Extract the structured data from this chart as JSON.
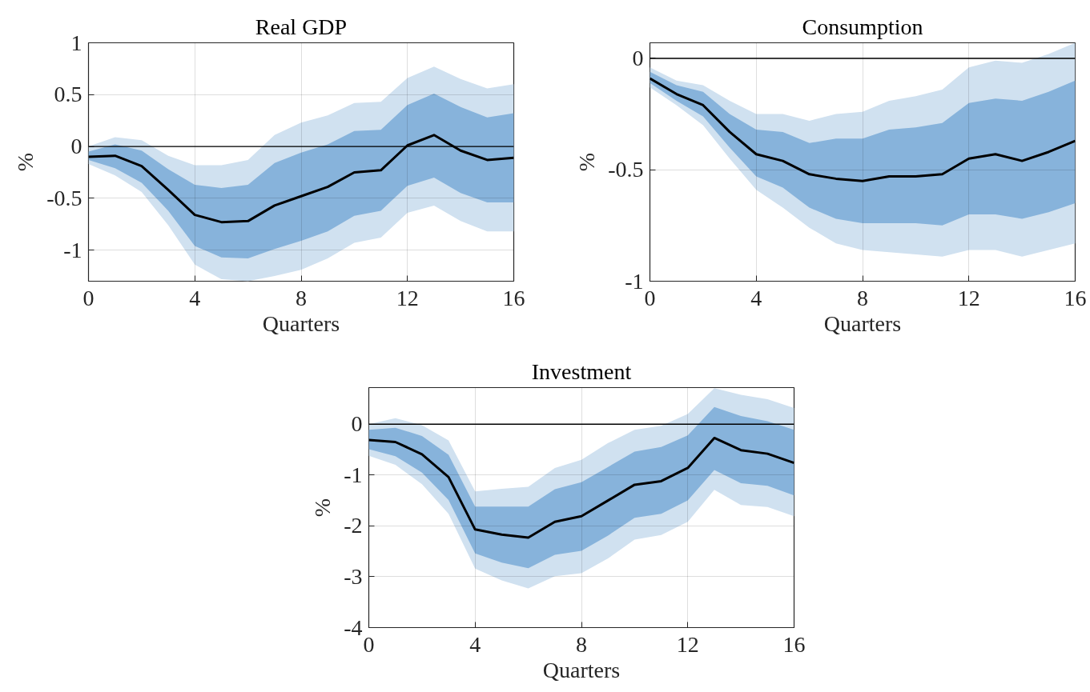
{
  "chart_data": [
    {
      "type": "line",
      "title": "Real GDP",
      "xlabel": "Quarters",
      "ylabel": "%",
      "x": [
        0,
        1,
        2,
        3,
        4,
        5,
        6,
        7,
        8,
        9,
        10,
        11,
        12,
        13,
        14,
        15,
        16
      ],
      "xlim": [
        0,
        16
      ],
      "xticks": [
        0,
        4,
        8,
        12,
        16
      ],
      "ylim": [
        -1.3,
        1
      ],
      "yticks": [
        -1,
        -0.5,
        0,
        0.5,
        1
      ],
      "grid": true,
      "line_style": "solid",
      "marker": "none",
      "ref_lines": [
        {
          "axis": "y",
          "value": 0,
          "color": "#000000"
        }
      ],
      "series": [
        {
          "color": "#d0e1f0",
          "values": [
            null,
            null,
            null,
            null,
            null,
            null,
            null,
            null,
            null,
            null,
            null,
            null,
            null,
            null,
            null,
            null,
            null
          ],
          "lower": [
            -0.17,
            -0.28,
            -0.44,
            -0.76,
            -1.14,
            -1.28,
            -1.3,
            -1.25,
            -1.19,
            -1.08,
            -0.93,
            -0.88,
            -0.64,
            -0.57,
            -0.72,
            -0.82,
            -0.82
          ],
          "upper": [
            0.0,
            0.09,
            0.06,
            -0.09,
            -0.18,
            -0.18,
            -0.13,
            0.11,
            0.23,
            0.3,
            0.42,
            0.43,
            0.66,
            0.77,
            0.65,
            0.56,
            0.6
          ]
        },
        {
          "color": "#87b3db",
          "values": [
            null,
            null,
            null,
            null,
            null,
            null,
            null,
            null,
            null,
            null,
            null,
            null,
            null,
            null,
            null,
            null,
            null
          ],
          "lower": [
            -0.13,
            -0.21,
            -0.35,
            -0.62,
            -0.96,
            -1.07,
            -1.08,
            -0.99,
            -0.91,
            -0.82,
            -0.67,
            -0.62,
            -0.38,
            -0.3,
            -0.45,
            -0.54,
            -0.54
          ],
          "upper": [
            -0.05,
            0.02,
            -0.04,
            -0.22,
            -0.37,
            -0.4,
            -0.37,
            -0.16,
            -0.06,
            0.02,
            0.15,
            0.16,
            0.4,
            0.51,
            0.38,
            0.28,
            0.32
          ]
        },
        {
          "color": "#000000",
          "values": [
            -0.1,
            -0.09,
            -0.19,
            -0.42,
            -0.66,
            -0.73,
            -0.72,
            -0.57,
            -0.48,
            -0.39,
            -0.25,
            -0.23,
            0.01,
            0.11,
            -0.04,
            -0.13,
            -0.11
          ]
        }
      ]
    },
    {
      "type": "line",
      "title": "Consumption",
      "xlabel": "Quarters",
      "ylabel": "%",
      "x": [
        0,
        1,
        2,
        3,
        4,
        5,
        6,
        7,
        8,
        9,
        10,
        11,
        12,
        13,
        14,
        15,
        16
      ],
      "xlim": [
        0,
        16
      ],
      "xticks": [
        0,
        4,
        8,
        12,
        16
      ],
      "ylim": [
        -1,
        0.07
      ],
      "yticks": [
        -1,
        -0.5,
        0
      ],
      "grid": true,
      "line_style": "solid",
      "marker": "none",
      "ref_lines": [
        {
          "axis": "y",
          "value": 0,
          "color": "#000000"
        }
      ],
      "series": [
        {
          "color": "#d0e1f0",
          "values": [
            null,
            null,
            null,
            null,
            null,
            null,
            null,
            null,
            null,
            null,
            null,
            null,
            null,
            null,
            null,
            null,
            null
          ],
          "lower": [
            -0.13,
            -0.21,
            -0.3,
            -0.45,
            -0.59,
            -0.67,
            -0.76,
            -0.83,
            -0.86,
            -0.87,
            -0.88,
            -0.89,
            -0.86,
            -0.86,
            -0.89,
            -0.86,
            -0.83
          ],
          "upper": [
            -0.04,
            -0.1,
            -0.12,
            -0.19,
            -0.25,
            -0.25,
            -0.28,
            -0.25,
            -0.24,
            -0.19,
            -0.17,
            -0.14,
            -0.04,
            -0.01,
            -0.02,
            0.02,
            0.07
          ]
        },
        {
          "color": "#87b3db",
          "values": [
            null,
            null,
            null,
            null,
            null,
            null,
            null,
            null,
            null,
            null,
            null,
            null,
            null,
            null,
            null,
            null,
            null
          ],
          "lower": [
            -0.11,
            -0.19,
            -0.26,
            -0.4,
            -0.53,
            -0.58,
            -0.67,
            -0.72,
            -0.74,
            -0.74,
            -0.74,
            -0.75,
            -0.7,
            -0.7,
            -0.72,
            -0.69,
            -0.65
          ],
          "upper": [
            -0.06,
            -0.12,
            -0.15,
            -0.25,
            -0.32,
            -0.33,
            -0.38,
            -0.36,
            -0.36,
            -0.32,
            -0.31,
            -0.29,
            -0.2,
            -0.18,
            -0.19,
            -0.15,
            -0.1
          ]
        },
        {
          "color": "#000000",
          "values": [
            -0.09,
            -0.16,
            -0.21,
            -0.33,
            -0.43,
            -0.46,
            -0.52,
            -0.54,
            -0.55,
            -0.53,
            -0.53,
            -0.52,
            -0.45,
            -0.43,
            -0.46,
            -0.42,
            -0.37
          ]
        }
      ]
    },
    {
      "type": "line",
      "title": "Investment",
      "xlabel": "Quarters",
      "ylabel": "%",
      "x": [
        0,
        1,
        2,
        3,
        4,
        5,
        6,
        7,
        8,
        9,
        10,
        11,
        12,
        13,
        14,
        15,
        16
      ],
      "xlim": [
        0,
        16
      ],
      "xticks": [
        0,
        4,
        8,
        12,
        16
      ],
      "ylim": [
        -4,
        0.72
      ],
      "yticks": [
        -4,
        -3,
        -2,
        -1,
        0
      ],
      "grid": true,
      "line_style": "solid",
      "marker": "none",
      "ref_lines": [
        {
          "axis": "y",
          "value": 0,
          "color": "#000000"
        }
      ],
      "series": [
        {
          "color": "#d0e1f0",
          "values": [
            null,
            null,
            null,
            null,
            null,
            null,
            null,
            null,
            null,
            null,
            null,
            null,
            null,
            null,
            null,
            null,
            null
          ],
          "lower": [
            -0.62,
            -0.8,
            -1.18,
            -1.76,
            -2.84,
            -3.07,
            -3.23,
            -2.99,
            -2.93,
            -2.64,
            -2.27,
            -2.18,
            -1.92,
            -1.29,
            -1.59,
            -1.63,
            -1.81
          ],
          "upper": [
            0.0,
            0.12,
            -0.02,
            -0.32,
            -1.32,
            -1.27,
            -1.23,
            -0.86,
            -0.7,
            -0.37,
            -0.11,
            -0.03,
            0.2,
            0.71,
            0.58,
            0.49,
            0.32
          ]
        },
        {
          "color": "#87b3db",
          "values": [
            null,
            null,
            null,
            null,
            null,
            null,
            null,
            null,
            null,
            null,
            null,
            null,
            null,
            null,
            null,
            null,
            null
          ],
          "lower": [
            -0.49,
            -0.63,
            -0.95,
            -1.49,
            -2.54,
            -2.72,
            -2.83,
            -2.57,
            -2.49,
            -2.19,
            -1.84,
            -1.76,
            -1.5,
            -0.9,
            -1.16,
            -1.21,
            -1.4
          ],
          "upper": [
            -0.11,
            -0.07,
            -0.23,
            -0.6,
            -1.62,
            -1.62,
            -1.62,
            -1.28,
            -1.14,
            -0.84,
            -0.54,
            -0.45,
            -0.22,
            0.34,
            0.16,
            0.06,
            -0.11
          ]
        },
        {
          "color": "#000000",
          "values": [
            -0.31,
            -0.35,
            -0.59,
            -1.04,
            -2.07,
            -2.17,
            -2.23,
            -1.92,
            -1.81,
            -1.5,
            -1.19,
            -1.12,
            -0.86,
            -0.27,
            -0.51,
            -0.58,
            -0.76
          ]
        }
      ]
    }
  ]
}
